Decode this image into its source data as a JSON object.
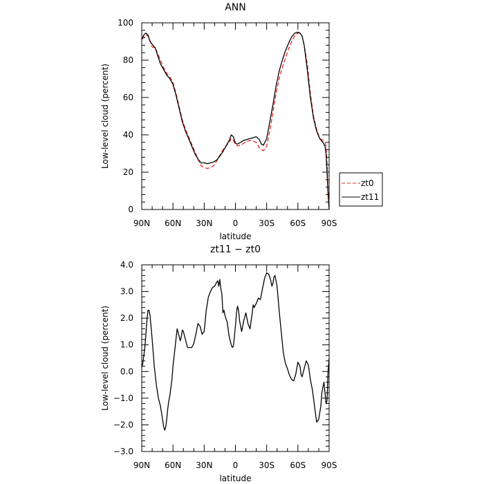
{
  "chart_data": [
    {
      "type": "line",
      "title": "ANN",
      "xlabel": "latitude",
      "ylabel": "Low-level cloud (percent)",
      "xlim": [
        90,
        -90
      ],
      "ylim": [
        0,
        100
      ],
      "x_ticks": [
        {
          "value": 90,
          "label": "90N"
        },
        {
          "value": 60,
          "label": "60N"
        },
        {
          "value": 30,
          "label": "30N"
        },
        {
          "value": 0,
          "label": "0"
        },
        {
          "value": -30,
          "label": "30S"
        },
        {
          "value": -60,
          "label": "60S"
        },
        {
          "value": -90,
          "label": "90S"
        }
      ],
      "y_ticks": [
        {
          "value": 0,
          "label": "0"
        },
        {
          "value": 20,
          "label": "20"
        },
        {
          "value": 40,
          "label": "40"
        },
        {
          "value": 60,
          "label": "60"
        },
        {
          "value": 80,
          "label": "80"
        },
        {
          "value": 100,
          "label": "100"
        }
      ],
      "legend": "right, outside plot",
      "series": [
        {
          "name": "zt0",
          "color": "#e8241c",
          "style": "dashed",
          "x": [
            90,
            87,
            85,
            83,
            80,
            77,
            75,
            72,
            69,
            66,
            63,
            60,
            57,
            54,
            51,
            48,
            45,
            42,
            39,
            36,
            33,
            30,
            27,
            24,
            21,
            18,
            15,
            12,
            9,
            6,
            4,
            2,
            0,
            -2,
            -5,
            -8,
            -11,
            -14,
            -17,
            -20,
            -23,
            -25,
            -27,
            -30,
            -33,
            -36,
            -39,
            -42,
            -45,
            -48,
            -51,
            -54,
            -57,
            -60,
            -62,
            -64,
            -66,
            -69,
            -72,
            -75,
            -78,
            -81,
            -84,
            -86,
            -87,
            -88,
            -89,
            -90
          ],
          "y": [
            91,
            93,
            93.5,
            92,
            87,
            86.5,
            84,
            80,
            76,
            73,
            71,
            68,
            62,
            55,
            48,
            43,
            39,
            35,
            31,
            27,
            23.5,
            22.5,
            22,
            22.5,
            23.5,
            26,
            29,
            32,
            34,
            36,
            38,
            37,
            35,
            34,
            34.5,
            35.5,
            36.5,
            37,
            36.5,
            36,
            33,
            32,
            31.5,
            34,
            42,
            52,
            62,
            70,
            76,
            81,
            86,
            90,
            93,
            94.5,
            94.5,
            93,
            88,
            78,
            62,
            50,
            43,
            38,
            37,
            36,
            34,
            25,
            10,
            3
          ]
        },
        {
          "name": "zt11",
          "color": "#000000",
          "style": "solid",
          "x": [
            90,
            88,
            86,
            84,
            82,
            80,
            77,
            75,
            72,
            69,
            66,
            63,
            60,
            57,
            54,
            51,
            48,
            45,
            42,
            39,
            36,
            33,
            30,
            27,
            24,
            21,
            18,
            15,
            12,
            9,
            6,
            4,
            2,
            0,
            -2,
            -5,
            -8,
            -11,
            -14,
            -17,
            -20,
            -23,
            -25,
            -27,
            -30,
            -33,
            -36,
            -39,
            -42,
            -45,
            -48,
            -51,
            -54,
            -57,
            -60,
            -62,
            -64,
            -66,
            -69,
            -72,
            -75,
            -78,
            -81,
            -84,
            -86,
            -87,
            -88,
            -89,
            -90
          ],
          "y": [
            91,
            93.5,
            94.5,
            93.5,
            90,
            88.5,
            86.5,
            83,
            78,
            75,
            72,
            70,
            67,
            61,
            54,
            47,
            42,
            38,
            34,
            30,
            27,
            25,
            25,
            24.5,
            25,
            25.5,
            26.5,
            28.5,
            31,
            34,
            37,
            40,
            39,
            35.5,
            35,
            36,
            37,
            37.5,
            38,
            38.5,
            39,
            37.5,
            35,
            34.5,
            38,
            47,
            56,
            66,
            74,
            80,
            85,
            89,
            92.5,
            94.5,
            95,
            94.5,
            93,
            88,
            75,
            60,
            49,
            42,
            38,
            36,
            34,
            30,
            20,
            8,
            0
          ]
        }
      ]
    },
    {
      "type": "line",
      "title": "zt11 − zt0",
      "xlabel": "latitude",
      "ylabel": "Low-level cloud (percent)",
      "xlim": [
        90,
        -90
      ],
      "ylim": [
        -3,
        4
      ],
      "x_ticks": [
        {
          "value": 90,
          "label": "90N"
        },
        {
          "value": 60,
          "label": "60N"
        },
        {
          "value": 30,
          "label": "30N"
        },
        {
          "value": 0,
          "label": "0"
        },
        {
          "value": -30,
          "label": "30S"
        },
        {
          "value": -60,
          "label": "60S"
        },
        {
          "value": -90,
          "label": "90S"
        }
      ],
      "y_ticks": [
        {
          "value": -3,
          "label": "−3.0"
        },
        {
          "value": -2,
          "label": "−2.0"
        },
        {
          "value": -1,
          "label": "−1.0"
        },
        {
          "value": 0,
          "label": "0.0"
        },
        {
          "value": 1,
          "label": "1.0"
        },
        {
          "value": 2,
          "label": "2.0"
        },
        {
          "value": 3,
          "label": "3.0"
        },
        {
          "value": 4,
          "label": "4.0"
        }
      ],
      "series": [
        {
          "name": "",
          "color": "#000000",
          "style": "solid",
          "x": [
            90,
            89,
            88,
            87,
            86,
            85,
            84,
            83,
            82,
            80,
            78,
            76,
            74,
            72,
            70,
            69,
            68,
            67,
            66,
            65,
            64,
            63,
            62,
            61,
            60,
            58,
            56,
            54,
            53,
            52,
            51,
            50,
            48,
            46,
            44,
            42,
            40,
            38,
            36,
            34,
            32,
            30,
            28,
            26,
            24,
            22,
            20,
            18,
            17,
            16,
            15,
            14,
            13,
            12,
            11,
            10,
            8,
            6,
            4,
            3,
            2,
            1,
            0,
            -1,
            -2,
            -3,
            -4,
            -6,
            -8,
            -10,
            -12,
            -14,
            -16,
            -17,
            -18,
            -20,
            -22,
            -24,
            -26,
            -28,
            -30,
            -32,
            -34,
            -35,
            -36,
            -37,
            -38,
            -40,
            -42,
            -44,
            -46,
            -48,
            -50,
            -52,
            -54,
            -56,
            -58,
            -60,
            -62,
            -63,
            -64,
            -66,
            -68,
            -70,
            -72,
            -74,
            -76,
            -78,
            -80,
            -82,
            -83,
            -84,
            -85,
            -86,
            -87,
            -88,
            -89,
            -90
          ],
          "y": [
            0.15,
            0.3,
            0.6,
            0.9,
            1.4,
            1.9,
            2.3,
            2.3,
            2.1,
            1.2,
            0.2,
            -0.5,
            -1.0,
            -1.3,
            -1.8,
            -2.05,
            -2.2,
            -2.1,
            -1.8,
            -1.4,
            -1.1,
            -0.9,
            -0.6,
            -0.3,
            0.2,
            0.9,
            1.6,
            1.3,
            1.15,
            1.3,
            1.55,
            1.5,
            1.2,
            0.9,
            0.9,
            0.9,
            1.05,
            1.4,
            1.8,
            1.7,
            1.4,
            1.5,
            2.3,
            2.8,
            3.0,
            3.15,
            3.2,
            3.35,
            3.4,
            3.2,
            3.45,
            3.1,
            2.9,
            2.2,
            2.3,
            2.1,
            1.85,
            1.3,
            1.0,
            0.9,
            0.95,
            1.3,
            1.7,
            2.2,
            2.45,
            2.3,
            1.9,
            1.5,
            1.9,
            2.2,
            1.8,
            1.6,
            2.15,
            2.5,
            2.4,
            2.55,
            2.75,
            2.7,
            3.1,
            3.5,
            3.7,
            3.65,
            3.4,
            3.2,
            3.3,
            3.55,
            3.6,
            3.2,
            2.3,
            1.5,
            0.7,
            0.3,
            0.1,
            -0.15,
            -0.3,
            -0.35,
            -0.1,
            0.35,
            0.2,
            -0.1,
            -0.2,
            0.1,
            0.4,
            0.25,
            -0.3,
            -0.7,
            -1.3,
            -1.9,
            -1.8,
            -1.3,
            -0.8,
            -0.6,
            -0.4,
            -0.8,
            -1.2,
            -1.1,
            0.0,
            0.5
          ]
        }
      ]
    }
  ],
  "legend_entries": [
    "zt0",
    "zt11"
  ]
}
